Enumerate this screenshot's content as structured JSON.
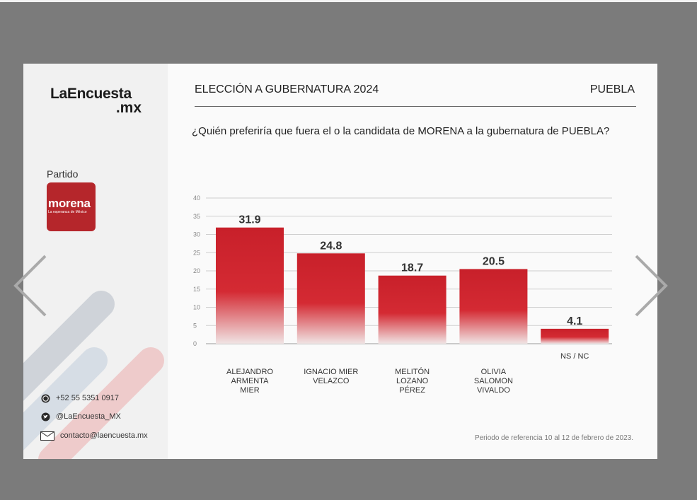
{
  "brand": {
    "line1": "LaEncuesta",
    "line2": ".mx"
  },
  "party": {
    "label": "Partido",
    "logo_text": "morena",
    "logo_subtext": "La esperanza de México",
    "color": "#b5262b"
  },
  "header": {
    "title": "ELECCIÓN A GUBERNATURA 2024",
    "state": "PUEBLA"
  },
  "question": "¿Quién preferiría que fuera el o la candidata de MORENA a la gubernatura de PUEBLA?",
  "contact": {
    "phone": "+52 55 5351 0917",
    "twitter": "@LaEncuesta_MX",
    "email": "contacto@laencuesta.mx"
  },
  "reference": "Periodo de referencia 10 al 12 de febrero de 2023.",
  "colors": {
    "bar_top": "#c8202a",
    "bar_bottom": "#ecdcdc",
    "background": "#7b7b7b"
  },
  "chart_data": {
    "type": "bar",
    "categories": [
      "ALEJANDRO ARMENTA MIER",
      "IGNACIO MIER VELAZCO",
      "MELITÓN LOZANO PÉREZ",
      "OLIVIA SALOMON VIVALDO",
      "NS / NC"
    ],
    "category_lines": [
      [
        "ALEJANDRO",
        "ARMENTA",
        "MIER"
      ],
      [
        "IGNACIO MIER",
        "VELAZCO"
      ],
      [
        "MELITÓN",
        "LOZANO",
        "PÉREZ"
      ],
      [
        "OLIVIA",
        "SALOMON",
        "VIVALDO"
      ],
      [
        "NS / NC"
      ]
    ],
    "values": [
      31.9,
      24.8,
      18.7,
      20.5,
      4.1
    ],
    "value_labels": [
      "31.9",
      "24.8",
      "18.7",
      "20.5",
      "4.1"
    ],
    "ylim": [
      0,
      40
    ],
    "yticks": [
      0,
      5,
      10,
      15,
      20,
      25,
      30,
      35,
      40
    ],
    "grid": true,
    "title": "",
    "xlabel": "",
    "ylabel": ""
  }
}
